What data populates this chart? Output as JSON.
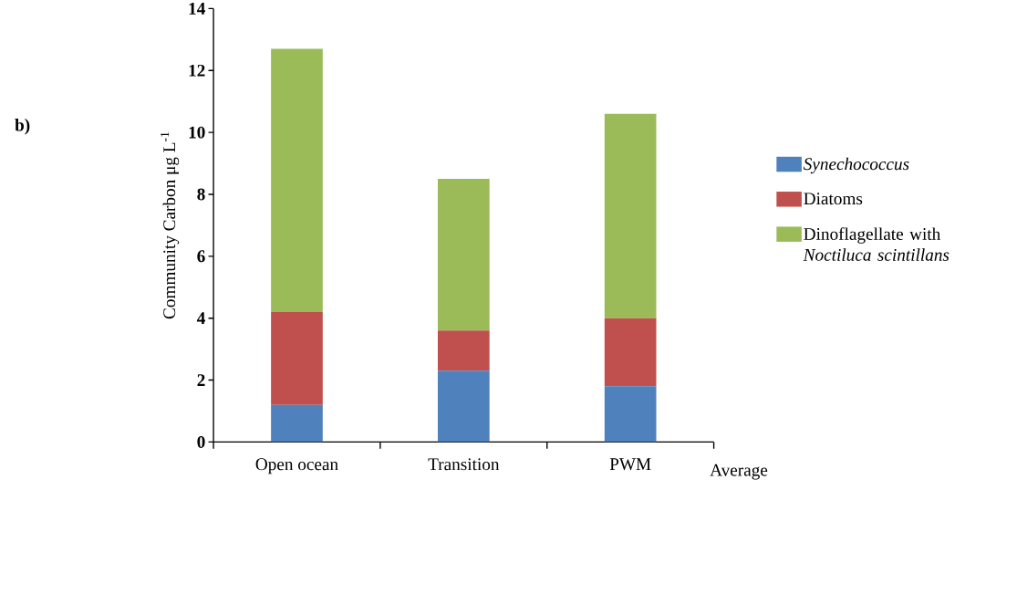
{
  "chart_data": {
    "type": "bar",
    "stacked": true,
    "categories": [
      "Open ocean",
      "Transition",
      "PWM"
    ],
    "xlabel": "Average",
    "ylabel": "Community Carbon μg L$^{-1}$",
    "annotations": [
      "b)"
    ],
    "series": [
      {
        "name": "Synechococcus",
        "color": "#4f81bd",
        "values": [
          1.2,
          2.3,
          1.8
        ]
      },
      {
        "name": "Diatoms",
        "color": "#c0504d",
        "values": [
          3.0,
          1.3,
          2.2
        ]
      },
      {
        "name": "Dinoflagellate with *Noctiluca scintillans*",
        "color": "#9bbb59",
        "values": [
          8.5,
          4.9,
          6.6
        ]
      }
    ],
    "ylim": [
      0,
      14
    ],
    "yticks": [
      0,
      2,
      4,
      6,
      8,
      10,
      12,
      14
    ],
    "legend": "right",
    "grid": false
  }
}
